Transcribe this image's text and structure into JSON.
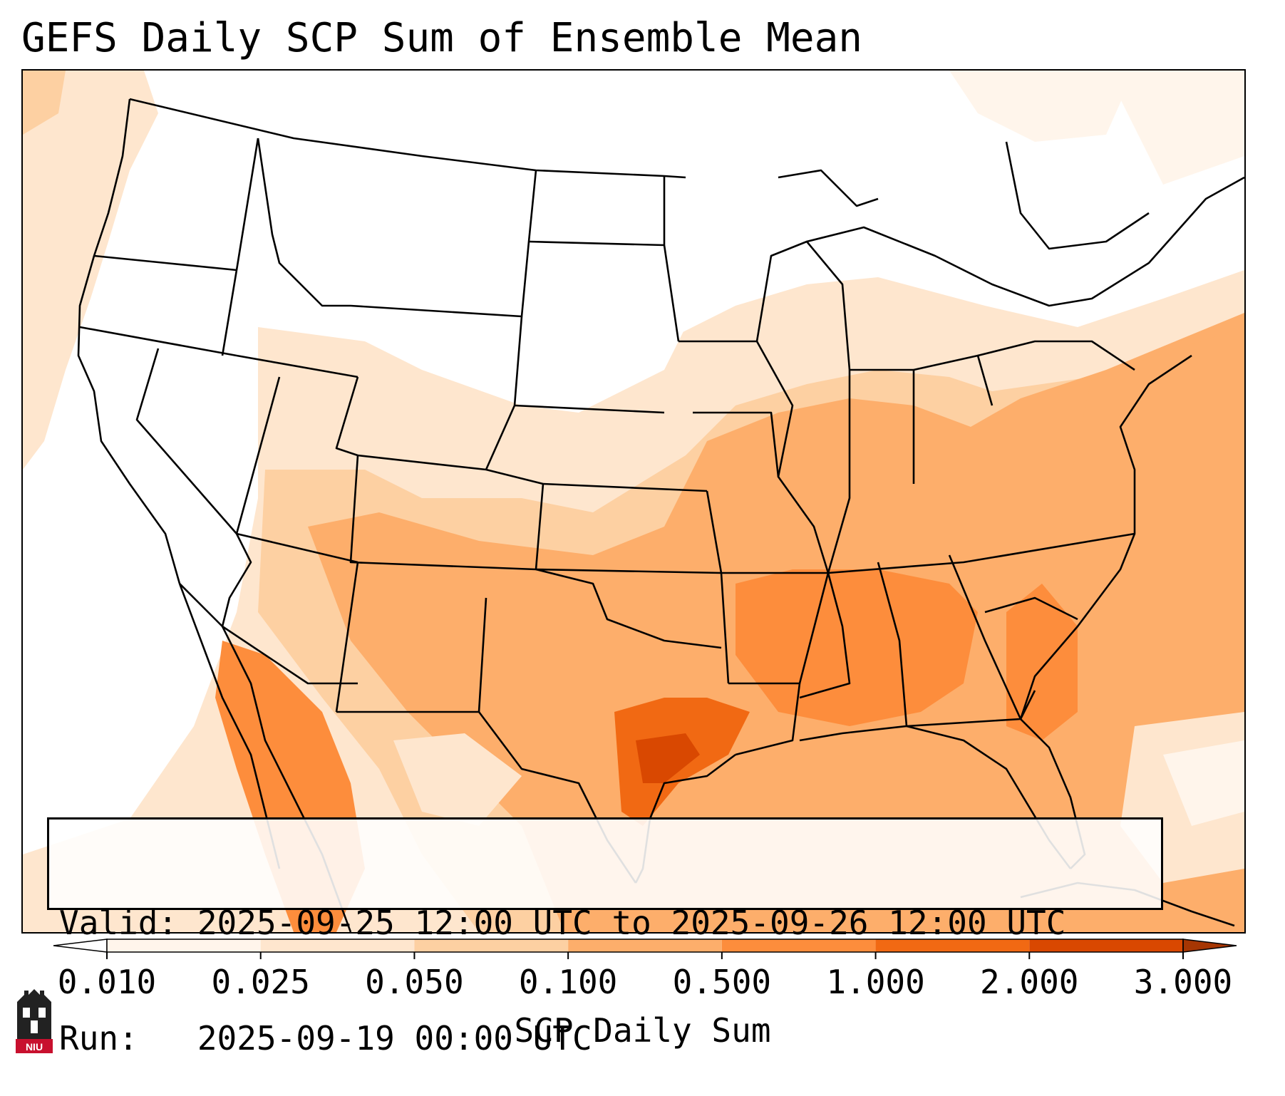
{
  "title": "GEFS Daily SCP Sum of Ensemble Mean",
  "info": {
    "valid_line": "Valid: 2025-09-25 12:00 UTC to 2025-09-26 12:00 UTC",
    "run_line": "Run:   2025-09-19 00:00 UTC"
  },
  "colorbar": {
    "label": "SCP Daily Sum",
    "ticks": [
      "0.010",
      "0.025",
      "0.050",
      "0.100",
      "0.500",
      "1.000",
      "2.000",
      "3.000"
    ],
    "colors": [
      "#fff5eb",
      "#fee6ce",
      "#fdd0a2",
      "#fdae6b",
      "#fd8d3c",
      "#f16913",
      "#d94801"
    ],
    "under_color": "#ffffff",
    "over_color": "#a63603"
  },
  "logo": {
    "text": "NIU",
    "color": "#c8102e"
  }
}
